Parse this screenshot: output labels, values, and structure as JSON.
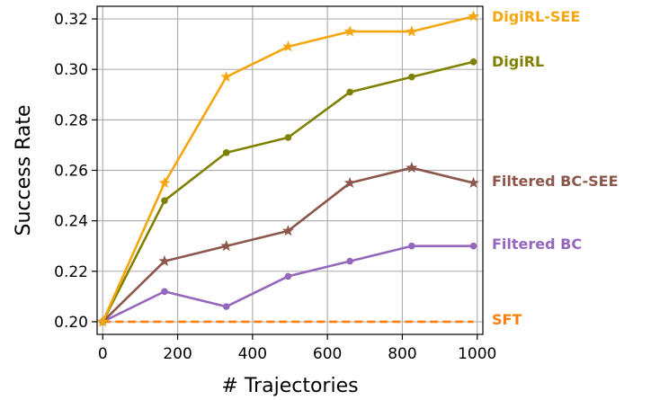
{
  "chart_data": {
    "type": "line",
    "title": "",
    "xlabel": "# Trajectories",
    "ylabel": "Success Rate",
    "xlim": [
      -15,
      1015
    ],
    "ylim": [
      0.195,
      0.325
    ],
    "xticks": [
      0,
      200,
      400,
      600,
      800,
      1000
    ],
    "xtick_labels": [
      "0",
      "200",
      "400",
      "600",
      "800",
      "1000"
    ],
    "yticks": [
      0.2,
      0.22,
      0.24,
      0.26,
      0.28,
      0.3,
      0.32
    ],
    "ytick_labels": [
      "0.20",
      "0.22",
      "0.24",
      "0.26",
      "0.28",
      "0.30",
      "0.32"
    ],
    "grid": true,
    "legend": "labels at right end of each line",
    "series": [
      {
        "name": "DigiRL-SEE",
        "color": "#f5a60f",
        "marker": "star",
        "dashed": false,
        "x": [
          0,
          165,
          330,
          495,
          660,
          825,
          990
        ],
        "y": [
          0.2,
          0.255,
          0.297,
          0.309,
          0.315,
          0.315,
          0.321
        ]
      },
      {
        "name": "DigiRL",
        "color": "#808000",
        "marker": "circle",
        "dashed": false,
        "x": [
          0,
          165,
          330,
          495,
          660,
          825,
          990
        ],
        "y": [
          0.2,
          0.248,
          0.267,
          0.273,
          0.291,
          0.297,
          0.303
        ]
      },
      {
        "name": "Filtered BC-SEE",
        "color": "#8c564b",
        "marker": "star",
        "dashed": false,
        "x": [
          0,
          165,
          330,
          495,
          660,
          825,
          990
        ],
        "y": [
          0.2,
          0.224,
          0.23,
          0.236,
          0.255,
          0.261,
          0.255
        ]
      },
      {
        "name": "Filtered BC",
        "color": "#9467bd",
        "marker": "circle",
        "dashed": false,
        "x": [
          0,
          165,
          330,
          495,
          660,
          825,
          990
        ],
        "y": [
          0.2,
          0.212,
          0.206,
          0.218,
          0.224,
          0.23,
          0.23
        ]
      },
      {
        "name": "SFT",
        "color": "#ff7f0e",
        "marker": "none",
        "dashed": true,
        "x": [
          0,
          990
        ],
        "y": [
          0.2,
          0.2
        ]
      }
    ]
  }
}
